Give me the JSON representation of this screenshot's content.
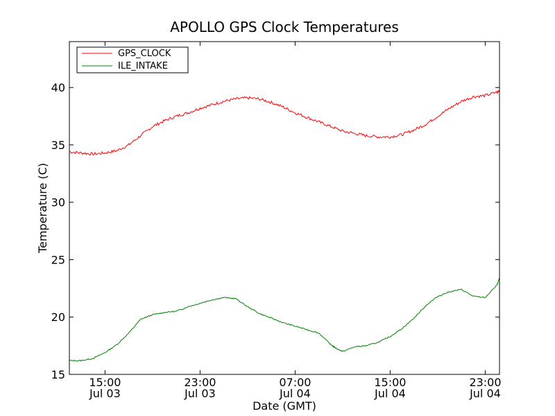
{
  "chart_data": {
    "type": "line",
    "title": "APOLLO GPS Clock Temperatures",
    "xlabel": "Date (GMT)",
    "ylabel": "Temperature (C)",
    "x_unit": "hours since Jul 03 12:00 GMT",
    "xlim": [
      0,
      36.2
    ],
    "ylim": [
      15,
      44
    ],
    "yticks": [
      15,
      20,
      25,
      30,
      35,
      40
    ],
    "xticks": [
      {
        "value": 3,
        "time": "15:00",
        "date": "Jul 03"
      },
      {
        "value": 11,
        "time": "23:00",
        "date": "Jul 03"
      },
      {
        "value": 19,
        "time": "07:00",
        "date": "Jul 04"
      },
      {
        "value": 27,
        "time": "15:00",
        "date": "Jul 04"
      },
      {
        "value": 35,
        "time": "23:00",
        "date": "Jul 04"
      }
    ],
    "grid": false,
    "legend_position": "top-left",
    "series": [
      {
        "name": "GPS_CLOCK",
        "color": "#ff0000",
        "x": [
          0,
          1,
          2,
          3,
          4,
          5,
          6,
          7,
          8,
          9,
          10,
          11,
          12,
          13,
          14,
          15,
          16,
          17,
          18,
          19,
          20,
          21,
          22,
          23,
          24,
          25,
          26,
          27,
          28,
          29,
          30,
          31,
          32,
          33,
          34,
          35,
          36,
          36.2
        ],
        "y": [
          34.4,
          34.3,
          34.2,
          34.3,
          34.5,
          35.0,
          35.8,
          36.6,
          37.1,
          37.5,
          37.8,
          38.2,
          38.5,
          38.8,
          39.0,
          39.1,
          39.0,
          38.7,
          38.3,
          37.8,
          37.4,
          37.0,
          36.6,
          36.2,
          36.0,
          35.8,
          35.7,
          35.7,
          35.9,
          36.3,
          36.8,
          37.5,
          38.2,
          38.8,
          39.2,
          39.3,
          39.6,
          39.8
        ]
      },
      {
        "name": "ILE_INTAKE",
        "color": "#008000",
        "x": [
          0,
          1,
          2,
          3,
          4,
          5,
          6,
          7,
          8,
          9,
          10,
          11,
          12,
          13,
          14,
          15,
          16,
          17,
          18,
          19,
          20,
          21,
          22,
          22.4,
          23,
          24,
          25,
          26,
          27,
          28,
          29,
          30,
          31,
          32,
          33,
          34,
          35,
          36,
          36.2
        ],
        "y": [
          16.2,
          16.2,
          16.4,
          16.9,
          17.6,
          18.6,
          19.8,
          20.2,
          20.4,
          20.5,
          20.9,
          21.2,
          21.5,
          21.7,
          21.6,
          20.9,
          20.3,
          19.9,
          19.5,
          19.2,
          18.9,
          18.6,
          17.6,
          17.3,
          17.0,
          17.4,
          17.5,
          17.8,
          18.3,
          19.0,
          19.9,
          21.0,
          21.8,
          22.2,
          22.4,
          21.8,
          21.7,
          22.8,
          23.4
        ]
      }
    ]
  }
}
